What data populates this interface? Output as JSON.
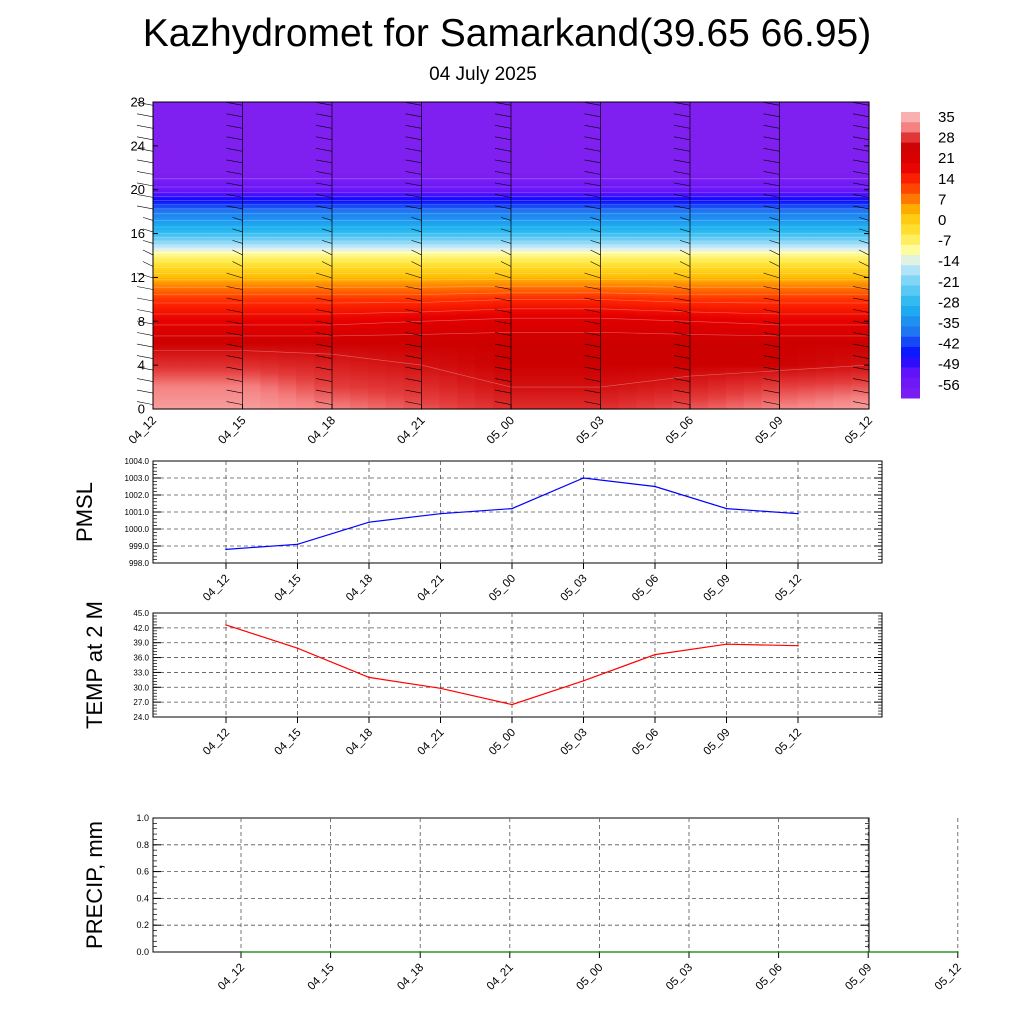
{
  "header": {
    "title": "Kazhydromet for Samarkand(39.65 66.95)",
    "subtitle": "04 July 2025"
  },
  "chart_data": [
    {
      "type": "heatmap",
      "name": "temperature-height",
      "time_labels": [
        "04_12",
        "04_15",
        "04_18",
        "04_21",
        "05_00",
        "05_03",
        "05_06",
        "05_09",
        "05_12"
      ],
      "y_ticks": [
        0,
        4,
        8,
        12,
        16,
        20,
        24,
        28
      ],
      "ylim": [
        0,
        28
      ],
      "colorbar_labels": [
        "35",
        "28",
        "21",
        "14",
        "7",
        "0",
        "-7",
        "-14",
        "-21",
        "-28",
        "-35",
        "-42",
        "-49",
        "-56"
      ],
      "layers": [
        {
          "h": 0,
          "t": [
            33,
            33,
            31,
            29,
            27,
            27,
            29,
            31,
            33
          ]
        },
        {
          "h": 2,
          "t": [
            31,
            31,
            28,
            27,
            25,
            25,
            26,
            28,
            29
          ]
        },
        {
          "h": 4,
          "t": [
            27,
            27,
            26,
            25,
            24,
            24,
            24,
            24,
            25
          ]
        },
        {
          "h": 6,
          "t": [
            24,
            24,
            24,
            24,
            24,
            24,
            24,
            24,
            24
          ]
        },
        {
          "h": 8,
          "t": [
            18,
            18,
            18,
            19,
            20,
            20,
            19,
            18,
            18
          ]
        },
        {
          "h": 10,
          "t": [
            12,
            12,
            12,
            12,
            13,
            13,
            12,
            12,
            12
          ]
        },
        {
          "h": 12,
          "t": [
            3,
            3,
            3,
            3,
            3,
            3,
            3,
            3,
            3
          ]
        },
        {
          "h": 14,
          "t": [
            -8,
            -8,
            -8,
            -8,
            -8,
            -8,
            -8,
            -8,
            -8
          ]
        },
        {
          "h": 14.6,
          "t": [
            -14,
            -14,
            -14,
            -14,
            -14,
            -14,
            -14,
            -14,
            -14
          ]
        },
        {
          "h": 16,
          "t": [
            -26,
            -26,
            -26,
            -26,
            -26,
            -26,
            -26,
            -26,
            -26
          ]
        },
        {
          "h": 18,
          "t": [
            -36,
            -36,
            -36,
            -36,
            -36,
            -36,
            -36,
            -36,
            -36
          ]
        },
        {
          "h": 20,
          "t": [
            -52,
            -52,
            -52,
            -52,
            -52,
            -52,
            -52,
            -52,
            -52
          ]
        },
        {
          "h": 21.5,
          "t": [
            -58,
            -58,
            -58,
            -58,
            -58,
            -58,
            -58,
            -58,
            -58
          ]
        },
        {
          "h": 28,
          "t": [
            -58,
            -58,
            -58,
            -58,
            -58,
            -58,
            -58,
            -58,
            -58
          ]
        }
      ]
    },
    {
      "type": "line",
      "ylabel": "PMSL",
      "x": [
        "04_12",
        "04_15",
        "04_18",
        "04_21",
        "05_00",
        "05_03",
        "05_06",
        "05_09",
        "05_12"
      ],
      "values": [
        998.8,
        999.1,
        1000.4,
        1000.9,
        1001.2,
        1003.0,
        1002.5,
        1001.2,
        1000.9
      ],
      "ylim": [
        998.0,
        1004.0
      ],
      "y_ticks": [
        "998.0",
        "999.0",
        "1000.0",
        "1001.0",
        "1002.0",
        "1003.0",
        "1004.0"
      ],
      "color": "#0000ff",
      "grid": true
    },
    {
      "type": "line",
      "ylabel": "TEMP at 2 M",
      "x": [
        "04_12",
        "04_15",
        "04_18",
        "04_21",
        "05_00",
        "05_03",
        "05_06",
        "05_09",
        "05_12"
      ],
      "values": [
        42.6,
        37.9,
        32.0,
        29.8,
        26.5,
        31.3,
        36.6,
        38.7,
        38.4
      ],
      "ylim": [
        24.0,
        45.0
      ],
      "y_ticks": [
        "24.0",
        "27.0",
        "30.0",
        "33.0",
        "36.0",
        "39.0",
        "42.0",
        "45.0"
      ],
      "color": "#ff0000",
      "grid": true
    },
    {
      "type": "line",
      "ylabel": "PRECIP, mm",
      "x": [
        "04_12",
        "04_15",
        "04_18",
        "04_21",
        "05_00",
        "05_03",
        "05_06",
        "05_09",
        "05_12"
      ],
      "values": [
        0,
        0,
        0,
        0,
        0,
        0,
        0,
        0,
        0
      ],
      "ylim": [
        0.0,
        1.0
      ],
      "y_ticks": [
        "0.0",
        "0.2",
        "0.4",
        "0.6",
        "0.8",
        "1.0"
      ],
      "color": "#008000",
      "grid": true
    }
  ]
}
